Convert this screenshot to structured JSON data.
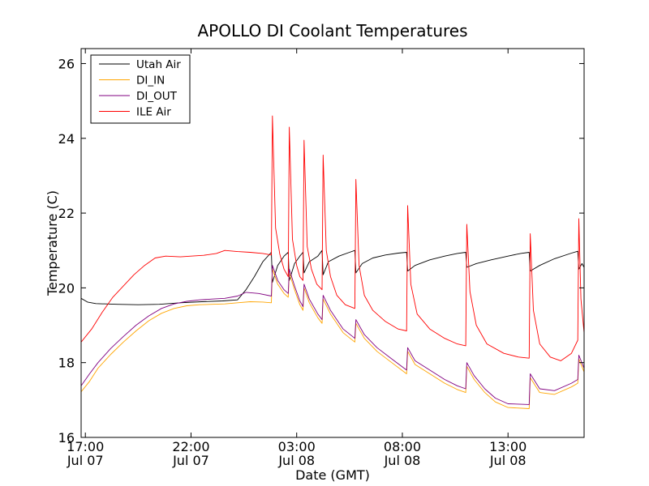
{
  "chart_data": {
    "type": "line",
    "title": "APOLLO DI Coolant Temperatures",
    "xlabel": "Date (GMT)",
    "ylabel": "Temperature (C)",
    "x_unit": "hours since Jul 07 00:00 GMT",
    "xlim": [
      16.8,
      40.6
    ],
    "ylim": [
      16,
      26.4
    ],
    "x_ticks": [
      {
        "value": 17,
        "line1": "17:00",
        "line2": "Jul 07"
      },
      {
        "value": 22,
        "line1": "22:00",
        "line2": "Jul 07"
      },
      {
        "value": 27,
        "line1": "03:00",
        "line2": "Jul 08"
      },
      {
        "value": 32,
        "line1": "08:00",
        "line2": "Jul 08"
      },
      {
        "value": 37,
        "line1": "13:00",
        "line2": "Jul 08"
      }
    ],
    "y_ticks": [
      {
        "value": 16,
        "label": "16"
      },
      {
        "value": 18,
        "label": "18"
      },
      {
        "value": 20,
        "label": "20"
      },
      {
        "value": 22,
        "label": "22"
      },
      {
        "value": 24,
        "label": "24"
      },
      {
        "value": 26,
        "label": "26"
      }
    ],
    "legend_position": "top-left",
    "series": [
      {
        "name": "Utah Air",
        "color": "#000000",
        "points": [
          [
            16.8,
            19.72
          ],
          [
            17.1,
            19.62
          ],
          [
            17.5,
            19.58
          ],
          [
            18.5,
            19.56
          ],
          [
            19.5,
            19.55
          ],
          [
            20.5,
            19.56
          ],
          [
            21.5,
            19.6
          ],
          [
            22.5,
            19.63
          ],
          [
            23.5,
            19.65
          ],
          [
            24.2,
            19.68
          ],
          [
            24.6,
            19.95
          ],
          [
            25,
            20.3
          ],
          [
            25.4,
            20.7
          ],
          [
            25.8,
            20.95
          ],
          [
            25.85,
            20.15
          ],
          [
            26.1,
            20.6
          ],
          [
            26.4,
            20.85
          ],
          [
            26.6,
            20.95
          ],
          [
            26.65,
            20.2
          ],
          [
            26.9,
            20.65
          ],
          [
            27.15,
            20.85
          ],
          [
            27.3,
            20.95
          ],
          [
            27.35,
            20.4
          ],
          [
            27.6,
            20.7
          ],
          [
            28,
            20.85
          ],
          [
            28.2,
            21.0
          ],
          [
            28.25,
            20.35
          ],
          [
            28.5,
            20.7
          ],
          [
            29,
            20.85
          ],
          [
            29.5,
            20.95
          ],
          [
            29.75,
            21.0
          ],
          [
            29.8,
            20.4
          ],
          [
            30.1,
            20.65
          ],
          [
            30.6,
            20.8
          ],
          [
            31.2,
            20.88
          ],
          [
            31.8,
            20.93
          ],
          [
            32.2,
            20.95
          ],
          [
            32.25,
            20.45
          ],
          [
            32.6,
            20.6
          ],
          [
            33.3,
            20.75
          ],
          [
            34,
            20.85
          ],
          [
            34.6,
            20.92
          ],
          [
            35,
            20.95
          ],
          [
            35.05,
            20.55
          ],
          [
            35.5,
            20.65
          ],
          [
            36.2,
            20.75
          ],
          [
            37,
            20.85
          ],
          [
            37.6,
            20.92
          ],
          [
            38,
            20.95
          ],
          [
            38.05,
            20.45
          ],
          [
            38.5,
            20.6
          ],
          [
            39.2,
            20.78
          ],
          [
            40,
            20.93
          ],
          [
            40.3,
            20.98
          ],
          [
            40.35,
            20.5
          ],
          [
            40.5,
            20.65
          ],
          [
            40.6,
            20.55
          ]
        ]
      },
      {
        "name": "DI_IN",
        "color": "#ffa500",
        "points": [
          [
            16.8,
            17.22
          ],
          [
            17.2,
            17.5
          ],
          [
            17.6,
            17.85
          ],
          [
            18.2,
            18.22
          ],
          [
            18.8,
            18.55
          ],
          [
            19.4,
            18.85
          ],
          [
            20,
            19.12
          ],
          [
            20.6,
            19.32
          ],
          [
            21.2,
            19.45
          ],
          [
            21.8,
            19.52
          ],
          [
            22.4,
            19.55
          ],
          [
            23,
            19.56
          ],
          [
            23.6,
            19.57
          ],
          [
            24.2,
            19.6
          ],
          [
            24.8,
            19.63
          ],
          [
            25.4,
            19.62
          ],
          [
            25.8,
            19.6
          ],
          [
            25.85,
            20.5
          ],
          [
            26.1,
            20.1
          ],
          [
            26.4,
            19.85
          ],
          [
            26.6,
            19.75
          ],
          [
            26.65,
            20.4
          ],
          [
            26.9,
            19.95
          ],
          [
            27.15,
            19.55
          ],
          [
            27.3,
            19.4
          ],
          [
            27.35,
            20.0
          ],
          [
            27.6,
            19.6
          ],
          [
            28,
            19.2
          ],
          [
            28.2,
            19.05
          ],
          [
            28.25,
            19.7
          ],
          [
            28.6,
            19.3
          ],
          [
            29.2,
            18.8
          ],
          [
            29.75,
            18.55
          ],
          [
            29.8,
            19.05
          ],
          [
            30.2,
            18.65
          ],
          [
            30.8,
            18.3
          ],
          [
            31.5,
            18.0
          ],
          [
            32.2,
            17.7
          ],
          [
            32.25,
            18.3
          ],
          [
            32.6,
            17.95
          ],
          [
            33.3,
            17.7
          ],
          [
            34,
            17.45
          ],
          [
            34.6,
            17.28
          ],
          [
            35,
            17.2
          ],
          [
            35.05,
            17.9
          ],
          [
            35.4,
            17.55
          ],
          [
            35.9,
            17.2
          ],
          [
            36.4,
            16.95
          ],
          [
            37,
            16.8
          ],
          [
            38,
            16.77
          ],
          [
            38.05,
            17.6
          ],
          [
            38.5,
            17.2
          ],
          [
            39.2,
            17.15
          ],
          [
            40,
            17.35
          ],
          [
            40.3,
            17.45
          ],
          [
            40.35,
            18.1
          ],
          [
            40.6,
            17.75
          ]
        ]
      },
      {
        "name": "DI_OUT",
        "color": "#800080",
        "points": [
          [
            16.8,
            17.38
          ],
          [
            17.2,
            17.7
          ],
          [
            17.6,
            18.0
          ],
          [
            18.2,
            18.38
          ],
          [
            18.8,
            18.7
          ],
          [
            19.4,
            19.0
          ],
          [
            20,
            19.25
          ],
          [
            20.6,
            19.45
          ],
          [
            21.2,
            19.57
          ],
          [
            21.8,
            19.64
          ],
          [
            22.4,
            19.68
          ],
          [
            23,
            19.7
          ],
          [
            23.6,
            19.72
          ],
          [
            24.2,
            19.78
          ],
          [
            24.6,
            19.88
          ],
          [
            25.2,
            19.85
          ],
          [
            25.8,
            19.78
          ],
          [
            25.85,
            20.6
          ],
          [
            26.1,
            20.2
          ],
          [
            26.4,
            19.95
          ],
          [
            26.6,
            19.85
          ],
          [
            26.65,
            20.5
          ],
          [
            26.9,
            20.05
          ],
          [
            27.15,
            19.65
          ],
          [
            27.3,
            19.5
          ],
          [
            27.35,
            20.1
          ],
          [
            27.6,
            19.7
          ],
          [
            28,
            19.3
          ],
          [
            28.2,
            19.15
          ],
          [
            28.25,
            19.8
          ],
          [
            28.6,
            19.4
          ],
          [
            29.2,
            18.9
          ],
          [
            29.75,
            18.65
          ],
          [
            29.8,
            19.15
          ],
          [
            30.2,
            18.75
          ],
          [
            30.8,
            18.4
          ],
          [
            31.5,
            18.1
          ],
          [
            32.2,
            17.8
          ],
          [
            32.25,
            18.4
          ],
          [
            32.6,
            18.05
          ],
          [
            33.3,
            17.8
          ],
          [
            34,
            17.55
          ],
          [
            34.6,
            17.38
          ],
          [
            35,
            17.3
          ],
          [
            35.05,
            18.0
          ],
          [
            35.4,
            17.65
          ],
          [
            35.9,
            17.3
          ],
          [
            36.4,
            17.05
          ],
          [
            37,
            16.9
          ],
          [
            38,
            16.88
          ],
          [
            38.05,
            17.7
          ],
          [
            38.5,
            17.3
          ],
          [
            39.2,
            17.25
          ],
          [
            40,
            17.45
          ],
          [
            40.3,
            17.55
          ],
          [
            40.35,
            18.2
          ],
          [
            40.6,
            17.85
          ]
        ]
      },
      {
        "name": "ILE Air",
        "color": "#ff0000",
        "points": [
          [
            16.8,
            18.55
          ],
          [
            17.3,
            18.9
          ],
          [
            17.8,
            19.35
          ],
          [
            18.3,
            19.75
          ],
          [
            18.8,
            20.05
          ],
          [
            19.3,
            20.35
          ],
          [
            19.8,
            20.6
          ],
          [
            20.3,
            20.8
          ],
          [
            20.8,
            20.85
          ],
          [
            21.5,
            20.83
          ],
          [
            22,
            20.85
          ],
          [
            22.6,
            20.87
          ],
          [
            23.2,
            20.92
          ],
          [
            23.6,
            21.0
          ],
          [
            24.2,
            20.97
          ],
          [
            24.8,
            20.95
          ],
          [
            25.4,
            20.92
          ],
          [
            25.8,
            20.88
          ],
          [
            25.85,
            24.6
          ],
          [
            26,
            21.6
          ],
          [
            26.2,
            20.9
          ],
          [
            26.4,
            20.5
          ],
          [
            26.6,
            20.3
          ],
          [
            26.65,
            24.3
          ],
          [
            26.8,
            21.3
          ],
          [
            27,
            20.6
          ],
          [
            27.15,
            20.3
          ],
          [
            27.3,
            20.2
          ],
          [
            27.35,
            23.95
          ],
          [
            27.5,
            21.1
          ],
          [
            27.7,
            20.5
          ],
          [
            27.95,
            20.1
          ],
          [
            28.2,
            19.95
          ],
          [
            28.25,
            23.55
          ],
          [
            28.4,
            21.0
          ],
          [
            28.6,
            20.3
          ],
          [
            28.9,
            19.8
          ],
          [
            29.3,
            19.55
          ],
          [
            29.75,
            19.45
          ],
          [
            29.8,
            22.9
          ],
          [
            29.95,
            20.6
          ],
          [
            30.2,
            19.8
          ],
          [
            30.6,
            19.4
          ],
          [
            31.2,
            19.1
          ],
          [
            31.8,
            18.9
          ],
          [
            32.2,
            18.85
          ],
          [
            32.25,
            22.2
          ],
          [
            32.4,
            20.1
          ],
          [
            32.7,
            19.3
          ],
          [
            33.3,
            18.9
          ],
          [
            34,
            18.65
          ],
          [
            34.6,
            18.5
          ],
          [
            35,
            18.45
          ],
          [
            35.05,
            21.7
          ],
          [
            35.2,
            19.9
          ],
          [
            35.5,
            19.0
          ],
          [
            36,
            18.5
          ],
          [
            36.8,
            18.25
          ],
          [
            37.5,
            18.15
          ],
          [
            38,
            18.12
          ],
          [
            38.05,
            21.45
          ],
          [
            38.2,
            19.4
          ],
          [
            38.5,
            18.5
          ],
          [
            39,
            18.15
          ],
          [
            39.5,
            18.05
          ],
          [
            40,
            18.25
          ],
          [
            40.3,
            18.6
          ],
          [
            40.35,
            21.85
          ],
          [
            40.45,
            19.7
          ],
          [
            40.6,
            18.8
          ]
        ]
      }
    ]
  }
}
